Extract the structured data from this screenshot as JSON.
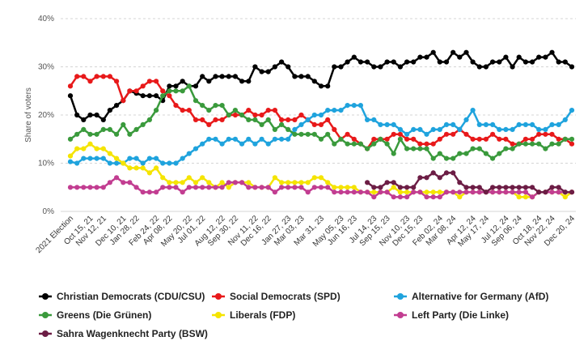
{
  "chart_data": {
    "type": "line",
    "title": "",
    "ylabel": "Share of voters",
    "xlabel": "",
    "ylim": [
      0,
      40
    ],
    "y_ticks": [
      0,
      10,
      20,
      30,
      40
    ],
    "y_tick_labels": [
      "0%",
      "10%",
      "20%",
      "30%",
      "40%"
    ],
    "grid": "horizontal dashed",
    "legend_position": "bottom",
    "x_tick_labels": [
      "2021 Election",
      "Oct 15, 21",
      "Nov 12, 21",
      "Dec 10, 21",
      "Jan 28, 22",
      "Feb 24, 22",
      "Apr 08, 22",
      "May 20, 22",
      "Jul 01, 22",
      "Aug 12, 22",
      "Sep 30, 22",
      "Nov 11, 22",
      "Dec 16, 22",
      "Jan 27, 23",
      "Mar 03, 23",
      "Mar 31, 23",
      "May 05, 23",
      "Jun 16, 23",
      "Jul 14, 23",
      "Sep 15, 23",
      "Nov 10, 23",
      "Dec 15, 23",
      "Feb 02, 24",
      "Mar 08, 24",
      "Apr 12, 24",
      "May 17, 24",
      "Jul 12, 24",
      "Sep 06, 24",
      "Oct 18, 24",
      "Nov 22, 24",
      "Dec 20, 24"
    ],
    "points_count": 77,
    "series": [
      {
        "name": "Christian Democrats (CDU/CSU)",
        "color": "#000000",
        "start_index": 0,
        "values": [
          24,
          20,
          19,
          20,
          20,
          19,
          21,
          22,
          23,
          25,
          24.5,
          24,
          24,
          24,
          23,
          26,
          26,
          27,
          26,
          26,
          28,
          27,
          28,
          28,
          28,
          28,
          27,
          27,
          30,
          29,
          29,
          30,
          31,
          30,
          28,
          28,
          28,
          27,
          26,
          26,
          30,
          30,
          31,
          32,
          31,
          31,
          30,
          30,
          31,
          31,
          30,
          31,
          31,
          32,
          32,
          33,
          31,
          31,
          33,
          32,
          33,
          31,
          30,
          30,
          31,
          31,
          32,
          30,
          32,
          31,
          31,
          32,
          32,
          33,
          31,
          31,
          30
        ]
      },
      {
        "name": "Social Democrats (SPD)",
        "color": "#e8191a",
        "start_index": 0,
        "values": [
          26,
          28,
          28,
          27,
          28,
          28,
          28,
          27,
          23,
          25,
          25,
          26,
          27,
          27,
          25,
          24,
          22,
          21,
          21,
          19,
          19,
          18,
          19,
          19,
          20,
          20,
          20,
          21,
          20,
          20,
          21,
          21,
          19,
          19,
          19,
          20,
          19,
          18,
          18,
          19,
          17,
          15,
          16,
          15,
          14,
          13,
          15,
          15,
          15,
          16,
          16,
          15,
          15,
          14,
          14,
          14,
          15,
          16,
          16,
          17,
          16,
          15,
          15,
          15,
          16,
          15,
          15,
          14,
          14,
          15,
          15,
          16,
          16,
          16,
          15,
          15,
          14
        ]
      },
      {
        "name": "Alternative for Germany (AfD)",
        "color": "#1fa3dd",
        "start_index": 0,
        "values": [
          10.3,
          10,
          11,
          11,
          11,
          11,
          10,
          10,
          10,
          11,
          11,
          10,
          11,
          11,
          10,
          10,
          10,
          11,
          12,
          13,
          14,
          15,
          15,
          14,
          15,
          15,
          14,
          15,
          14,
          15,
          14,
          15,
          15,
          15,
          17,
          18,
          19,
          20,
          20,
          21,
          21,
          21,
          22,
          22,
          22,
          19,
          19,
          18,
          18,
          18,
          17,
          16,
          17,
          17,
          16,
          17,
          17,
          18,
          18,
          17,
          19,
          21,
          18,
          18,
          18,
          17,
          17,
          17,
          18,
          18,
          18,
          17,
          17,
          18,
          18,
          19,
          21
        ]
      },
      {
        "name": "Greens (Die Grünen)",
        "color": "#3a9a3c",
        "start_index": 0,
        "values": [
          15,
          16,
          17,
          16,
          16,
          17,
          17,
          16,
          18,
          16,
          17,
          18,
          19,
          21,
          24,
          25,
          25,
          25,
          26,
          23,
          22,
          21,
          22,
          22,
          20,
          21,
          20,
          19,
          19,
          18,
          19,
          17,
          18,
          17,
          16,
          16,
          16,
          16,
          15,
          16,
          14,
          15,
          14,
          14,
          14,
          13,
          14,
          15,
          14,
          12,
          15,
          13,
          13,
          13,
          13,
          11,
          12,
          11,
          11,
          12,
          12,
          13,
          13,
          12,
          11,
          12,
          13,
          13,
          14,
          14,
          14,
          14,
          13,
          14,
          14,
          15,
          15
        ]
      },
      {
        "name": "Liberals (FDP)",
        "color": "#f5e400",
        "start_index": 0,
        "values": [
          11.5,
          13,
          13,
          14,
          13,
          13,
          12,
          11,
          10,
          9,
          9,
          9,
          8,
          9,
          7,
          6,
          6,
          6,
          7,
          6,
          7,
          6,
          5,
          6,
          5,
          6,
          6,
          6,
          5,
          5,
          5,
          7,
          6,
          6,
          6,
          6,
          6,
          7,
          7,
          6,
          5,
          5,
          5,
          5,
          4,
          4,
          4,
          4,
          4,
          5,
          4,
          4,
          4,
          4,
          4,
          4,
          4,
          4,
          4,
          3,
          4,
          4,
          4,
          4,
          4,
          4,
          4,
          4,
          3,
          3,
          3,
          4,
          4,
          4,
          4,
          3,
          4
        ]
      },
      {
        "name": "Left Party (Die Linke)",
        "color": "#c23d91",
        "start_index": 0,
        "values": [
          5,
          5,
          5,
          5,
          5,
          5,
          6,
          7,
          6,
          6,
          5,
          4,
          4,
          4,
          5,
          5,
          5,
          4,
          5,
          5,
          5,
          5,
          5,
          5,
          6,
          6,
          6,
          5,
          5,
          5,
          5,
          4,
          5,
          5,
          5,
          5,
          4,
          5,
          5,
          5,
          4,
          4,
          4,
          4,
          4,
          4,
          3,
          4,
          4,
          3,
          3,
          3,
          4,
          4,
          3,
          3,
          3,
          4,
          4,
          4,
          4,
          4,
          4,
          4,
          4,
          4,
          4,
          4,
          4,
          4,
          3,
          4,
          4,
          4,
          4,
          4,
          4
        ]
      },
      {
        "name": "Sahra Wagenknecht Party (BSW)",
        "color": "#6c1d45",
        "start_index": 45,
        "values": [
          6,
          5,
          5,
          6,
          6,
          5,
          5,
          5,
          7,
          7,
          8,
          7,
          8,
          8,
          6,
          5,
          5,
          5,
          4,
          5,
          5,
          5,
          5,
          5,
          5,
          5,
          4,
          4,
          5,
          5,
          4,
          4
        ]
      }
    ]
  }
}
